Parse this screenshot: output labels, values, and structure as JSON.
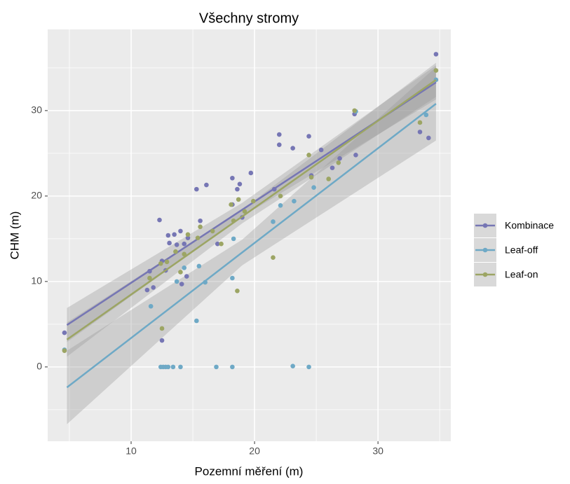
{
  "chart_data": {
    "type": "scatter",
    "title": "Všechny stromy",
    "x_label": "Pozemní měření (m)",
    "y_label": "CHM (m)",
    "xlim": [
      3.24,
      35.9
    ],
    "ylim": [
      -8.7,
      39.5
    ],
    "xticks": [
      10,
      20,
      30
    ],
    "yticks": [
      0,
      10,
      20,
      30
    ],
    "xminor": [
      5,
      15,
      25,
      35
    ],
    "yminor": [
      -5,
      5,
      15,
      25,
      35
    ],
    "grid": true,
    "legend": "right",
    "series": [
      {
        "name": "Kombinace",
        "color": "#7676b4",
        "x": [
          4.6,
          11.3,
          11.5,
          11.8,
          12.3,
          12.5,
          12.5,
          12.8,
          13.0,
          13.1,
          13.5,
          13.7,
          14.0,
          14.1,
          14.3,
          14.5,
          14.6,
          15.3,
          15.6,
          16.1,
          17.0,
          18.2,
          18.2,
          18.6,
          18.8,
          19.0,
          19.7,
          21.6,
          22.0,
          22.0,
          23.1,
          24.4,
          24.6,
          25.4,
          26.3,
          26.9,
          28.1,
          28.2,
          33.4,
          34.1,
          34.7
        ],
        "values": [
          4.0,
          9.0,
          11.2,
          9.3,
          17.2,
          12.4,
          3.1,
          11.3,
          15.4,
          14.5,
          15.5,
          14.3,
          15.9,
          9.7,
          14.4,
          10.6,
          15.1,
          20.8,
          17.1,
          21.3,
          14.4,
          22.1,
          19.0,
          20.8,
          21.4,
          17.5,
          22.7,
          20.8,
          27.2,
          26.0,
          25.6,
          27.0,
          22.4,
          25.4,
          23.3,
          24.4,
          29.6,
          24.8,
          27.5,
          26.8,
          36.6
        ],
        "trend": {
          "x": [
            4.8,
            19,
            34.7
          ],
          "fit": [
            4.9,
            18.4,
            33.3
          ],
          "lower": [
            2.9,
            17.6,
            31.3
          ],
          "upper": [
            6.9,
            19.2,
            35.3
          ]
        }
      },
      {
        "name": "Leaf-off",
        "color": "#6ea9c6",
        "x": [
          4.6,
          11.6,
          12.4,
          12.6,
          12.8,
          13.0,
          13.4,
          13.7,
          14.0,
          14.3,
          15.3,
          15.5,
          16.0,
          16.9,
          18.2,
          18.2,
          18.3,
          21.5,
          22.1,
          23.1,
          23.2,
          24.4,
          24.8,
          28.2,
          33.9,
          34.7
        ],
        "values": [
          2.0,
          7.1,
          0,
          0,
          0,
          0,
          0,
          10.0,
          0,
          11.6,
          5.4,
          11.8,
          9.9,
          0,
          0,
          10.4,
          15.0,
          17.0,
          18.9,
          0.1,
          19.4,
          0,
          21.0,
          29.9,
          29.5,
          33.6
        ],
        "trend": {
          "x": [
            4.8,
            19,
            34.7
          ],
          "fit": [
            -2.4,
            13.4,
            30.8
          ],
          "lower": [
            -6.7,
            11.9,
            26.5
          ],
          "upper": [
            1.9,
            14.9,
            35.1
          ]
        }
      },
      {
        "name": "Leaf-on",
        "color": "#9ca564",
        "x": [
          4.6,
          11.5,
          12.4,
          12.5,
          12.9,
          13.6,
          14.0,
          14.3,
          14.6,
          15.4,
          15.6,
          16.6,
          17.3,
          18.1,
          18.3,
          18.6,
          18.7,
          19.2,
          19.9,
          21.5,
          22.1,
          24.4,
          24.6,
          26.0,
          26.8,
          28.1,
          33.4,
          34.7
        ],
        "values": [
          1.9,
          10.4,
          12.1,
          4.5,
          12.3,
          13.5,
          11.1,
          13.2,
          15.5,
          15.1,
          16.4,
          15.9,
          14.4,
          19.0,
          17.1,
          8.9,
          19.6,
          18.2,
          19.4,
          12.8,
          20.0,
          24.8,
          22.2,
          22.0,
          23.9,
          30.0,
          28.6,
          34.7
        ],
        "trend": {
          "x": [
            4.8,
            19,
            34.7
          ],
          "fit": [
            3.2,
            17.6,
            33.6
          ],
          "lower": [
            1.2,
            16.8,
            31.6
          ],
          "upper": [
            5.2,
            18.4,
            35.6
          ]
        }
      }
    ]
  }
}
